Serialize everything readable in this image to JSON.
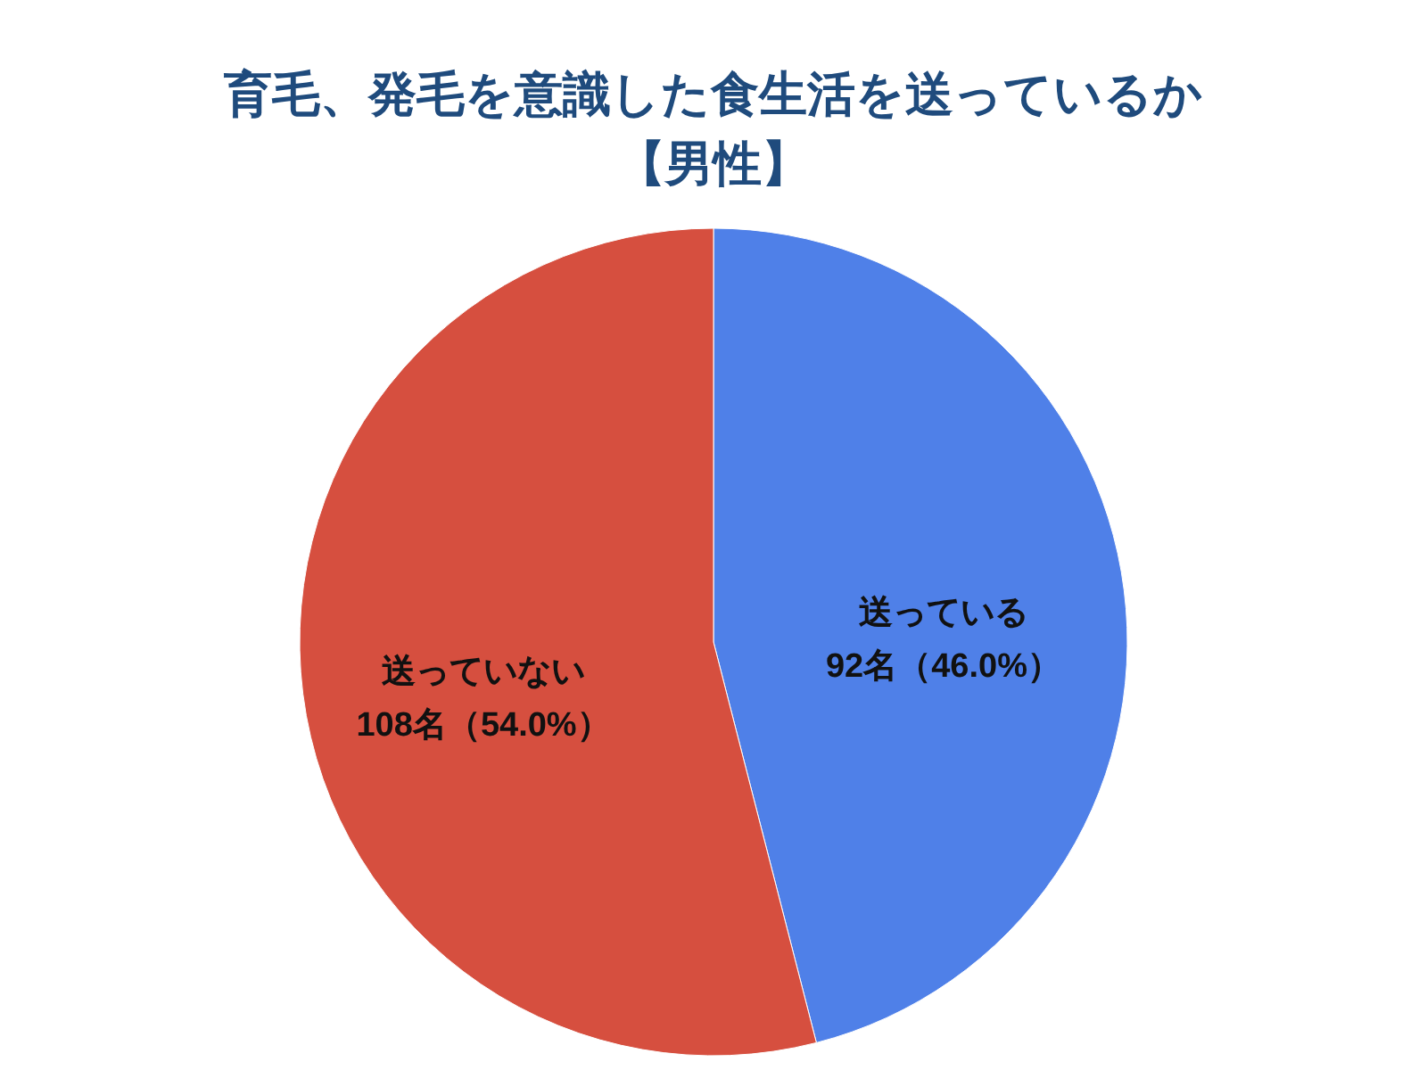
{
  "chart_data": {
    "type": "pie",
    "title": "育毛、発毛を意識した食生活を送っているか",
    "subtitle": "【男性】",
    "categories": [
      "送っている",
      "送っていない"
    ],
    "values": [
      92,
      108
    ],
    "value_labels": [
      "92名（46.0%）",
      "108名（54.0%）"
    ],
    "colors": [
      "#4f80e8",
      "#d64f3f"
    ]
  }
}
